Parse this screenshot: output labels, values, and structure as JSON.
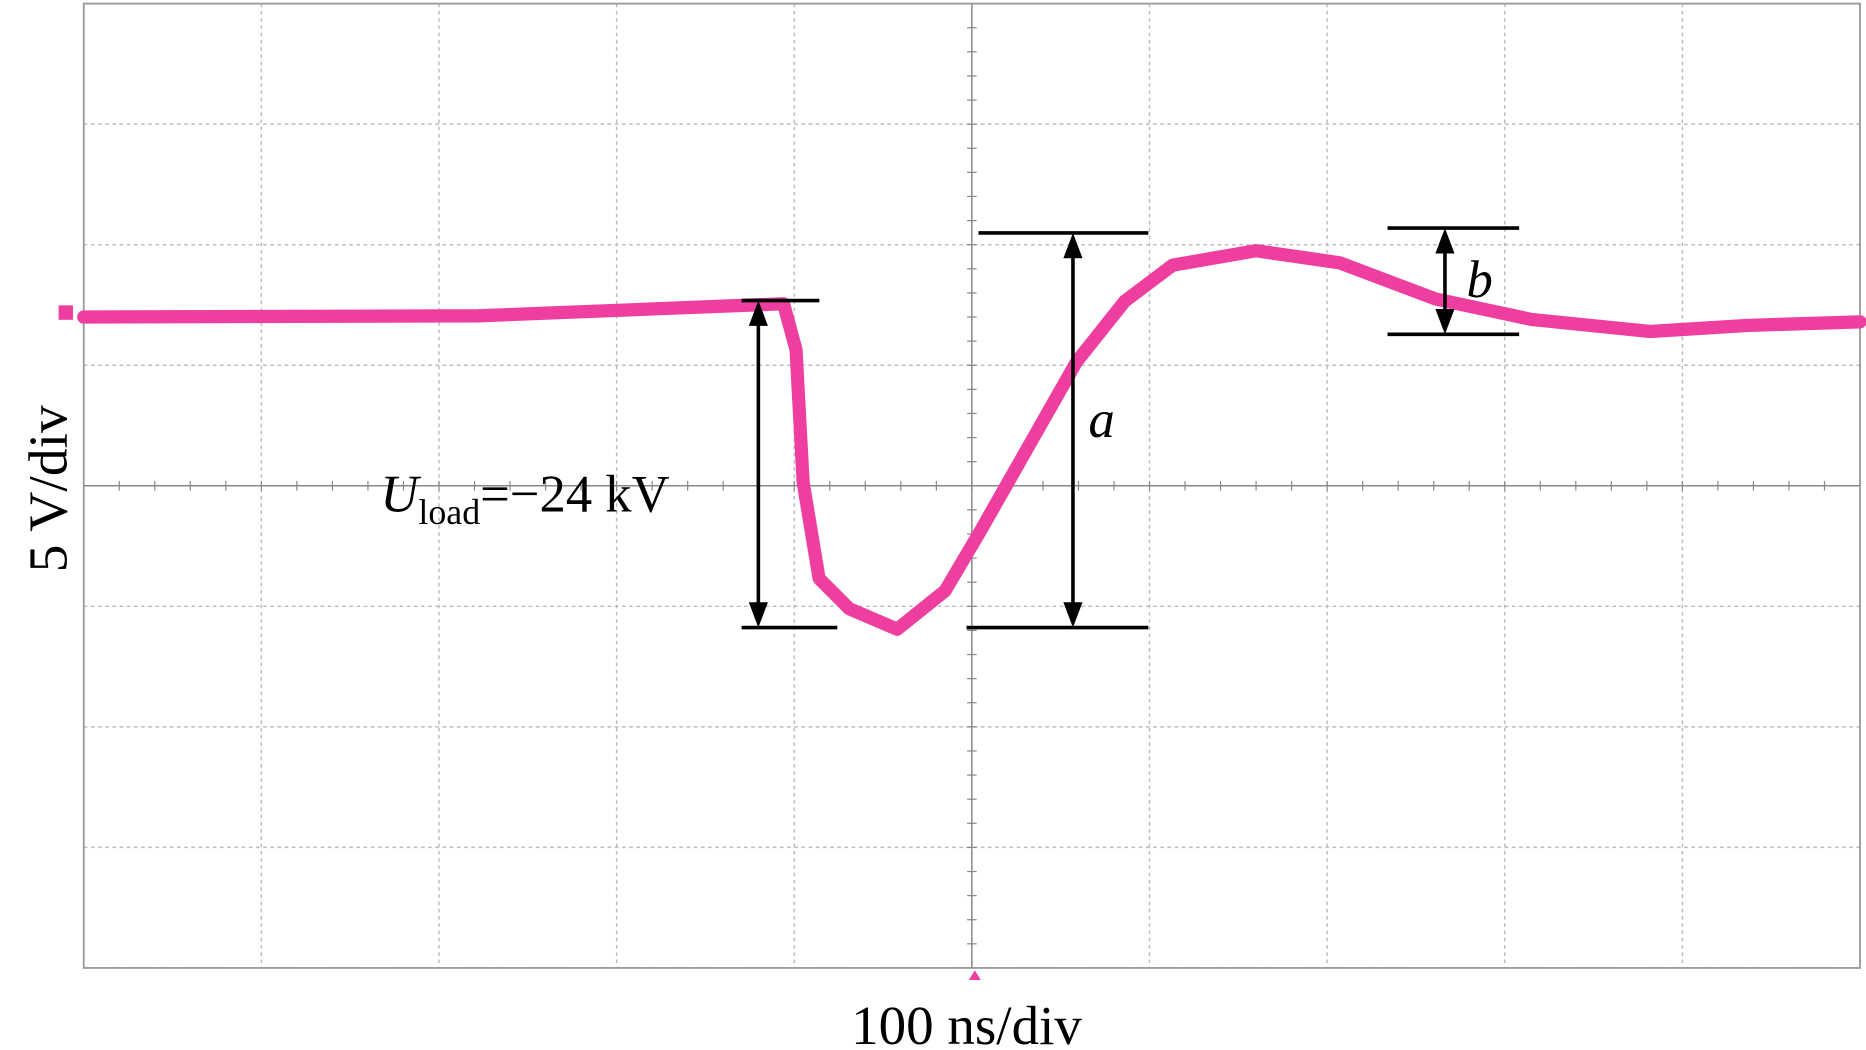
{
  "chart_data": {
    "type": "line",
    "xlabel": "100 ns/div",
    "ylabel": "5 V/div",
    "x": [
      0,
      222,
      394,
      401,
      405,
      414,
      431,
      458,
      485,
      505,
      532,
      559,
      586,
      613,
      660,
      707,
      761,
      815,
      882,
      936,
      1000
    ],
    "values": [
      7.0,
      7.05,
      7.55,
      5.65,
      0.15,
      -3.85,
      -5.1,
      -5.95,
      -4.35,
      -1.85,
      1.65,
      5.15,
      7.65,
      9.15,
      9.75,
      9.25,
      7.75,
      6.9,
      6.4,
      6.65,
      6.8
    ],
    "color": "#ee3fa0",
    "xlim": [
      0,
      1000
    ],
    "ylim": [
      -20,
      20
    ],
    "xticks": [
      0,
      100,
      200,
      300,
      400,
      500,
      600,
      700,
      800,
      900,
      1000
    ],
    "yticks": [
      -20,
      -15,
      -10,
      -5,
      0,
      5,
      10,
      15,
      20
    ],
    "grid": true,
    "annotations": {
      "load": {
        "symbol": "U",
        "subscript": "load",
        "text": "=−24 kV"
      },
      "a": "a",
      "b": "b"
    }
  }
}
